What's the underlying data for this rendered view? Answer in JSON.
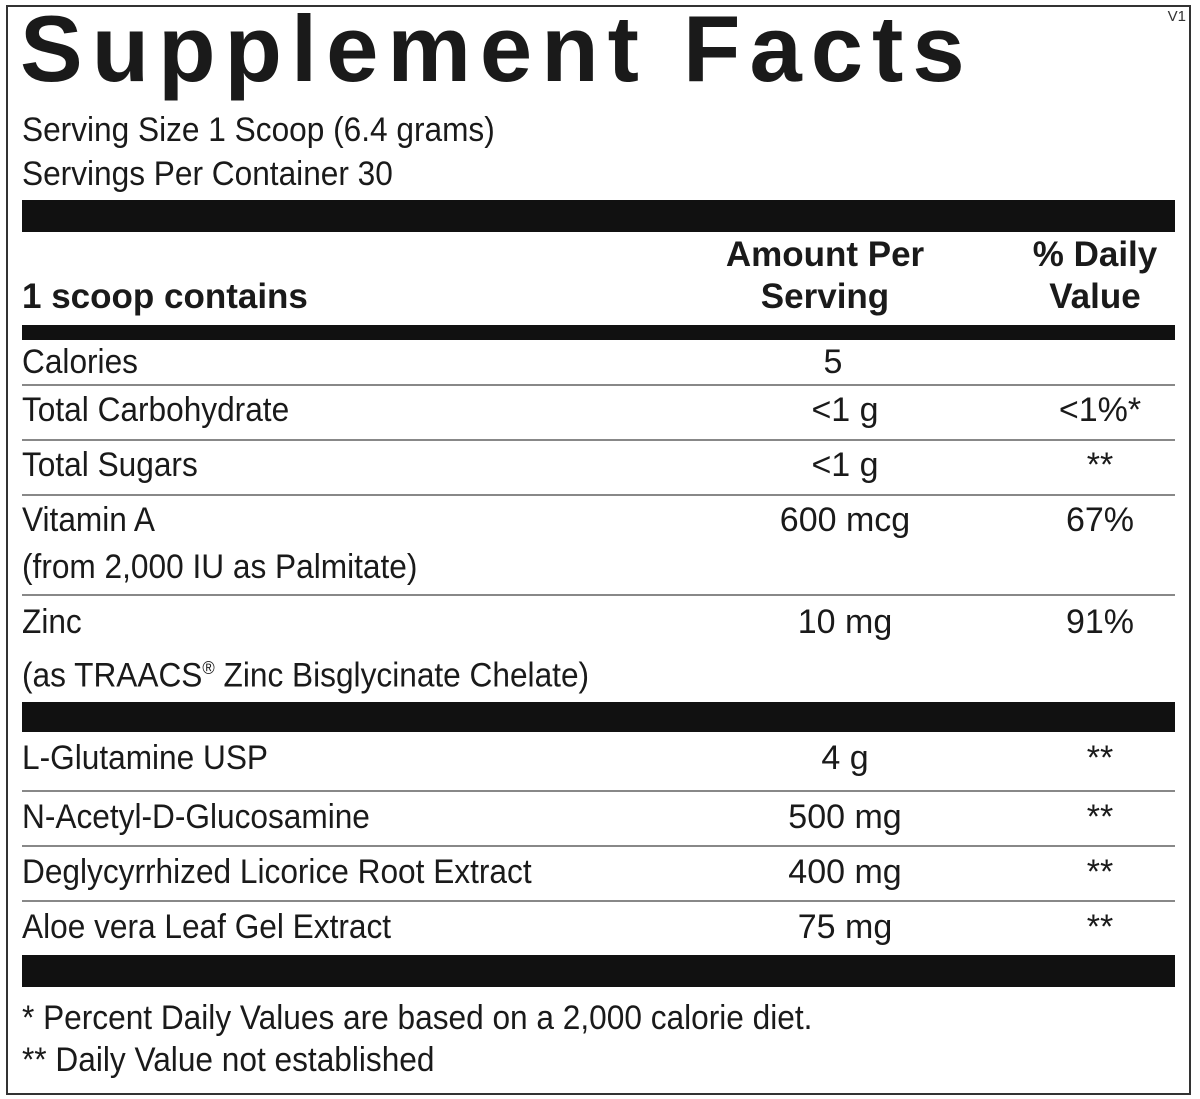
{
  "title": "Supplement Facts",
  "version": "V1",
  "serving_size": "Serving Size 1 Scoop (6.4 grams)",
  "servings_per_container": "Servings Per Container 30",
  "header": {
    "contains": "1 scoop contains",
    "amount_line1": "Amount Per",
    "amount_line2": "Serving",
    "dv_line1": "% Daily",
    "dv_line2": "Value"
  },
  "rows": [
    {
      "name": "Calories",
      "amount": "5",
      "dv": ""
    },
    {
      "name": "Total Carbohydrate",
      "amount": "<1 g",
      "dv": "<1%*"
    },
    {
      "name": "Total Sugars",
      "amount": "<1 g",
      "dv": "**"
    },
    {
      "name": "Vitamin A",
      "sub": "(from 2,000 IU as Palmitate)",
      "amount": "600 mcg",
      "dv": "67%"
    },
    {
      "name": "Zinc",
      "sub_pre": "(as TRAACS",
      "sub_mark": "®",
      "sub_post": " Zinc Bisglycinate Chelate)",
      "amount": "10 mg",
      "dv": "91%"
    },
    {
      "name": "L-Glutamine USP",
      "amount": "4 g",
      "dv": "**"
    },
    {
      "name": "N-Acetyl-D-Glucosamine",
      "amount": "500 mg",
      "dv": "**"
    },
    {
      "name": "Deglycyrrhized Licorice Root Extract",
      "amount": "400 mg",
      "dv": "**"
    },
    {
      "name": "Aloe vera Leaf Gel Extract",
      "amount": "75 mg",
      "dv": "**"
    }
  ],
  "footnotes": [
    "* Percent Daily Values are based on a 2,000 calorie diet.",
    "** Daily Value not established"
  ]
}
